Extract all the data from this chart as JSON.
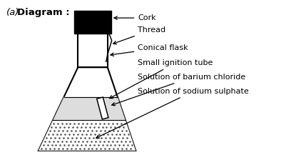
{
  "title_italic": "(a)",
  "title_bold": "Diagram :",
  "background_color": "#ffffff",
  "labels": {
    "cork": "Cork",
    "thread": "Thread",
    "conical_flask": "Conical flask",
    "ignition_tube": "Small ignition tube",
    "barium_chloride": "Solution of barium chloride",
    "sodium_sulphate": "Solution of sodium sulphate"
  },
  "figsize": [
    4.22,
    2.24
  ],
  "dpi": 100
}
